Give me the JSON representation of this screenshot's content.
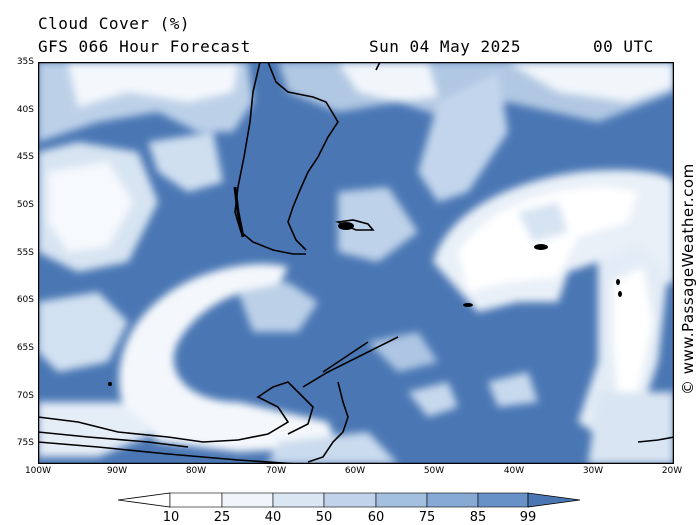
{
  "header": {
    "title": "Cloud Cover (%)",
    "forecast": "GFS 066 Hour Forecast",
    "date": "Sun 04 May 2025",
    "time": "00 UTC"
  },
  "credit": "© www.PassageWeather.com",
  "map": {
    "lat_labels": [
      "35S",
      "40S",
      "45S",
      "50S",
      "55S",
      "60S",
      "65S",
      "70S",
      "75S"
    ],
    "lon_labels": [
      "100W",
      "90W",
      "80W",
      "70W",
      "60W",
      "50W",
      "40W",
      "30W",
      "20W"
    ],
    "lat_range": [
      -35,
      -77
    ],
    "lon_range": [
      -100,
      -20
    ],
    "background_color": "#4a77b4"
  },
  "colorbar": {
    "ticks": [
      "10",
      "25",
      "40",
      "50",
      "60",
      "75",
      "85",
      "99"
    ],
    "colors": [
      "#ffffff",
      "#f1f5fb",
      "#dbe6f3",
      "#c0d3ea",
      "#a4c0e0",
      "#86aad4",
      "#6791c7",
      "#4a77b4"
    ]
  }
}
